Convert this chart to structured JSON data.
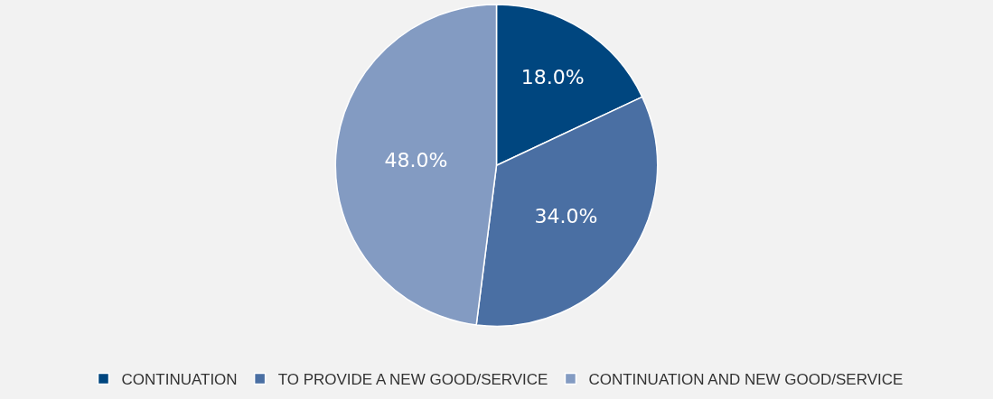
{
  "chart_data": {
    "type": "pie",
    "categories": [
      "CONTINUATION",
      "TO PROVIDE A NEW GOOD/SERVICE",
      "CONTINUATION AND NEW GOOD/SERVICE"
    ],
    "values": [
      18,
      34,
      48
    ],
    "value_labels": [
      "18.0%",
      "34.0%",
      "48.0%"
    ],
    "colors": [
      "#00467f",
      "#4a6fa3",
      "#839bc2"
    ],
    "legend": "bottom"
  }
}
